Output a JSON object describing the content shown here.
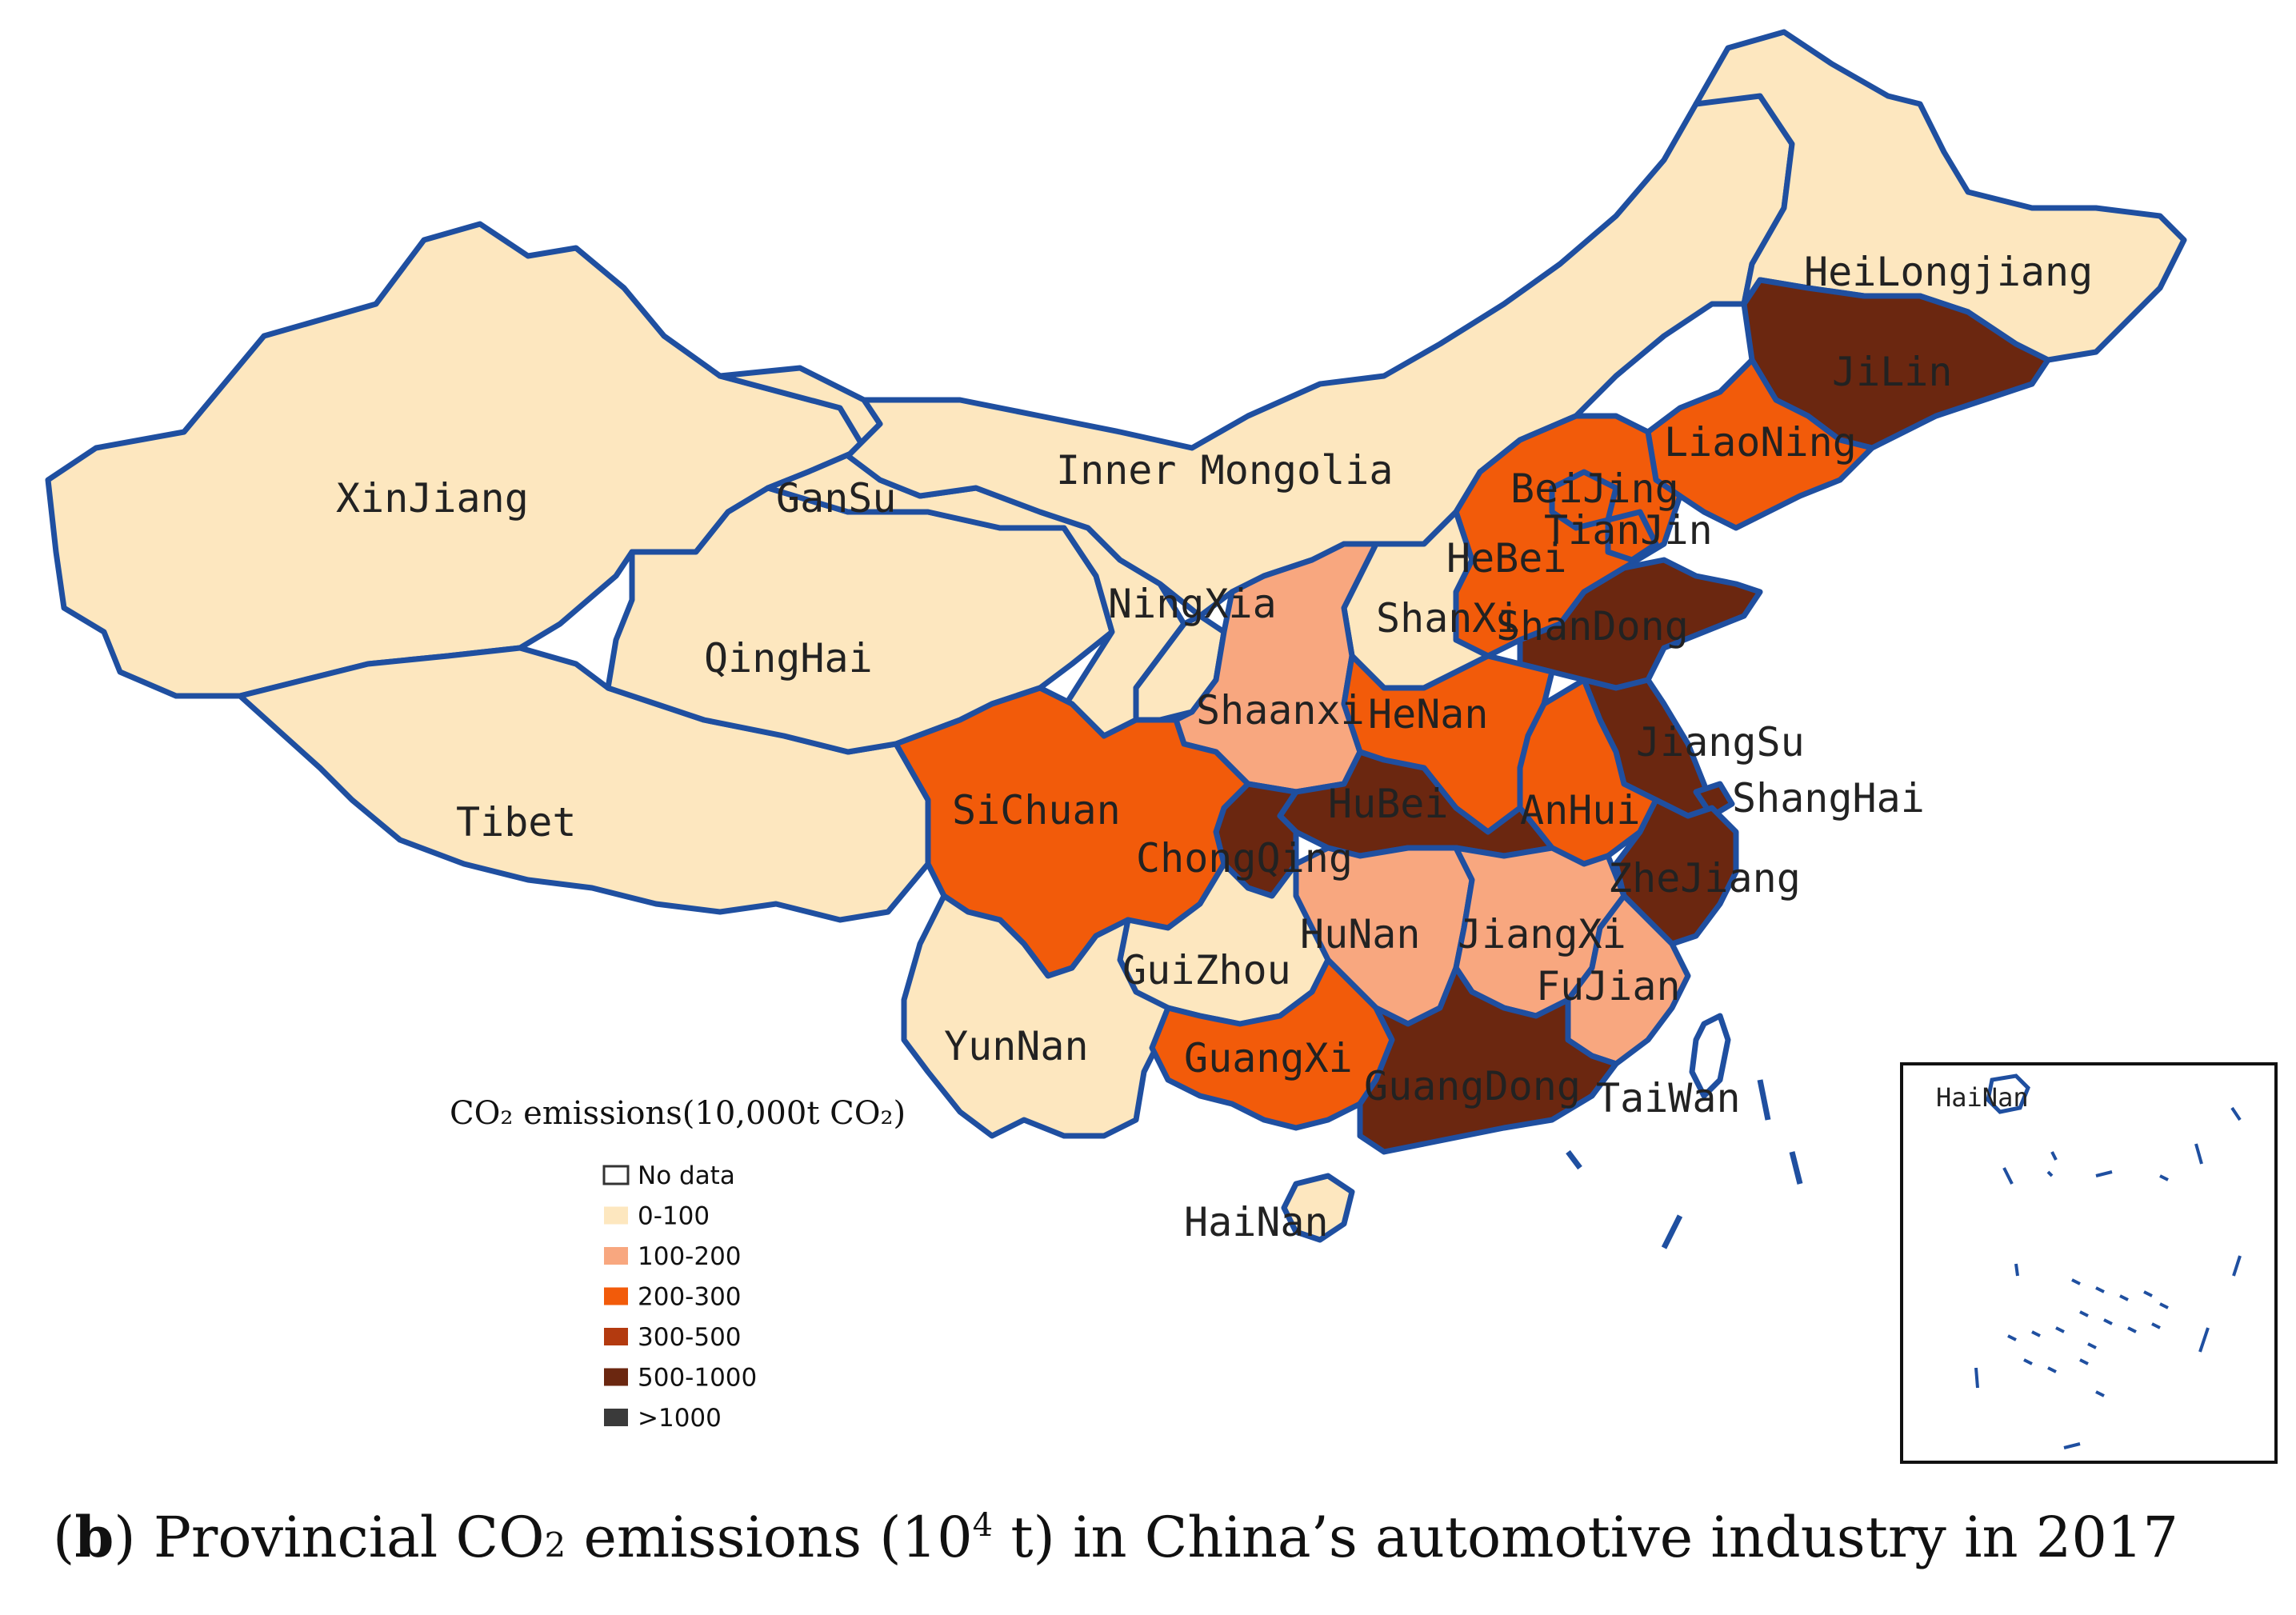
{
  "legend": {
    "title": "CO₂ emissions(10,000t CO₂)",
    "classes": [
      {
        "label": "No data",
        "color": "#ffffff"
      },
      {
        "label": "0-100",
        "color": "#fde7bf"
      },
      {
        "label": "100-200",
        "color": "#f8a77f"
      },
      {
        "label": "200-300",
        "color": "#f25b0a"
      },
      {
        "label": "300-500",
        "color": "#b33a0f"
      },
      {
        "label": "500-1000",
        "color": "#6b2710"
      },
      {
        "label": ">1000",
        "color": "#3a3a3a"
      }
    ]
  },
  "colors": {
    "border": "#1f4fa0",
    "background": "#ffffff"
  },
  "provinces": [
    {
      "name": "XinJiang",
      "class": "0-100"
    },
    {
      "name": "GanSu",
      "class": "0-100"
    },
    {
      "name": "Inner Mongolia",
      "class": "0-100"
    },
    {
      "name": "HeiLongjiang",
      "class": "0-100"
    },
    {
      "name": "JiLin",
      "class": "500-1000"
    },
    {
      "name": "LiaoNing",
      "class": "200-300"
    },
    {
      "name": "BeiJing",
      "class": "200-300"
    },
    {
      "name": "TianJin",
      "class": "200-300"
    },
    {
      "name": "HeBei",
      "class": "200-300"
    },
    {
      "name": "ShanXi",
      "class": "0-100"
    },
    {
      "name": "ShanDong",
      "class": "500-1000"
    },
    {
      "name": "NingXia",
      "class": "0-100"
    },
    {
      "name": "QingHai",
      "class": "0-100"
    },
    {
      "name": "Shaanxi",
      "class": "100-200"
    },
    {
      "name": "HeNan",
      "class": "200-300"
    },
    {
      "name": "JiangSu",
      "class": "500-1000"
    },
    {
      "name": "ShangHai",
      "class": "500-1000"
    },
    {
      "name": "AnHui",
      "class": "200-300"
    },
    {
      "name": "HuBei",
      "class": "500-1000"
    },
    {
      "name": "SiChuan",
      "class": "200-300"
    },
    {
      "name": "Tibet",
      "class": "0-100"
    },
    {
      "name": "ChongQing",
      "class": "500-1000"
    },
    {
      "name": "ZheJiang",
      "class": "500-1000"
    },
    {
      "name": "HuNan",
      "class": "100-200"
    },
    {
      "name": "JiangXi",
      "class": "100-200"
    },
    {
      "name": "FuJian",
      "class": "100-200"
    },
    {
      "name": "GuiZhou",
      "class": "0-100"
    },
    {
      "name": "YunNan",
      "class": "0-100"
    },
    {
      "name": "GuangXi",
      "class": "200-300"
    },
    {
      "name": "GuangDong",
      "class": "500-1000"
    },
    {
      "name": "TaiWan",
      "class": "No data"
    },
    {
      "name": "HaiNan",
      "class": "0-100"
    }
  ],
  "inset": {
    "label": "HaiNan"
  },
  "caption": {
    "panel": "b",
    "text_a": ") Provincial CO",
    "sub": "2",
    "text_b": " emissions (10",
    "sup": "4",
    "text_c": " t) in China’s automotive industry in 2017"
  }
}
